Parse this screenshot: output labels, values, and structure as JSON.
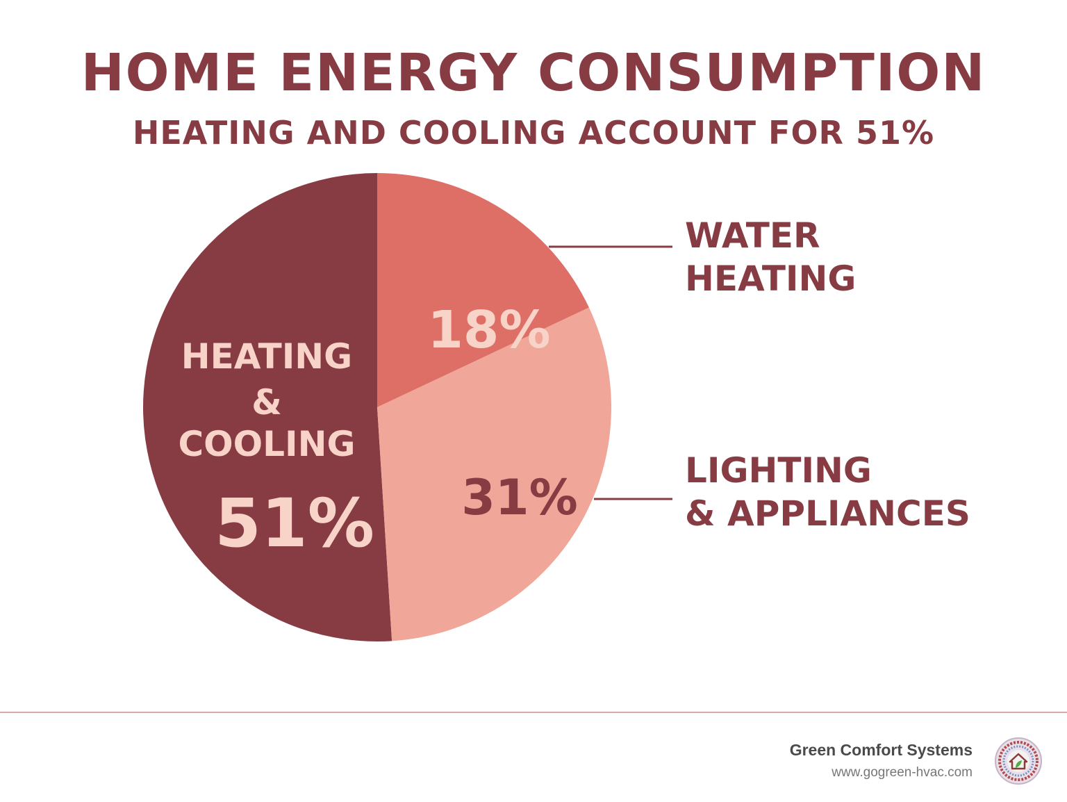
{
  "title": "HOME ENERGY CONSUMPTION",
  "subtitle": "HEATING AND COOLING ACCOUNT FOR 51%",
  "chart_data": {
    "type": "pie",
    "slices": [
      {
        "name": "HEATING & COOLING",
        "value": 51,
        "value_label": "51%",
        "color": "#873c44",
        "label_color": "#f8d3c8"
      },
      {
        "name": "WATER HEATING",
        "value": 18,
        "value_label": "18%",
        "color": "#de6f67",
        "label_color": "#f8d3c8"
      },
      {
        "name": "LIGHTING & APPLIANCES",
        "value": 31,
        "value_label": "31%",
        "color": "#f0a699",
        "label_color": "#873c44"
      }
    ],
    "inner_label": {
      "line1": "HEATING",
      "line2": "&",
      "line3": "COOLING"
    },
    "legend": {
      "water": [
        "WATER",
        "HEATING"
      ],
      "lighting": [
        "LIGHTING",
        "& APPLIANCES"
      ]
    }
  },
  "footer": {
    "company": "Green Comfort Systems",
    "url": "www.gogreen-hvac.com"
  },
  "colors": {
    "text": "#873c44",
    "divider": "#d9a7aa"
  }
}
